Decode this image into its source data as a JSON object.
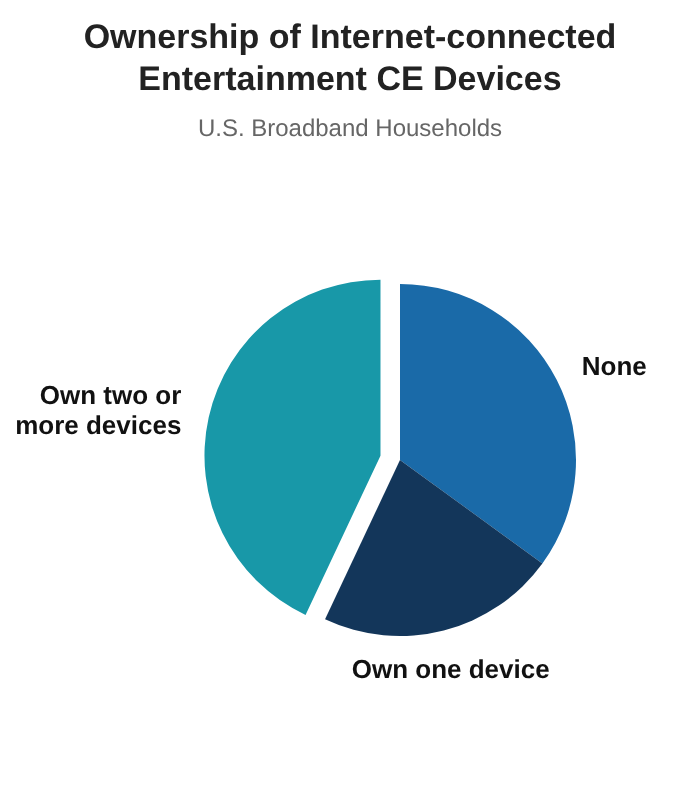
{
  "chart_data": {
    "type": "pie",
    "title": "Ownership of Internet-connected Entertainment CE Devices",
    "subtitle": "U.S. Broadband Households",
    "categories": [
      "None",
      "Own one device",
      "Own two or more devices"
    ],
    "values": [
      35,
      22,
      43
    ],
    "colors": [
      "#1a6aa8",
      "#13365a",
      "#1898a8"
    ]
  }
}
